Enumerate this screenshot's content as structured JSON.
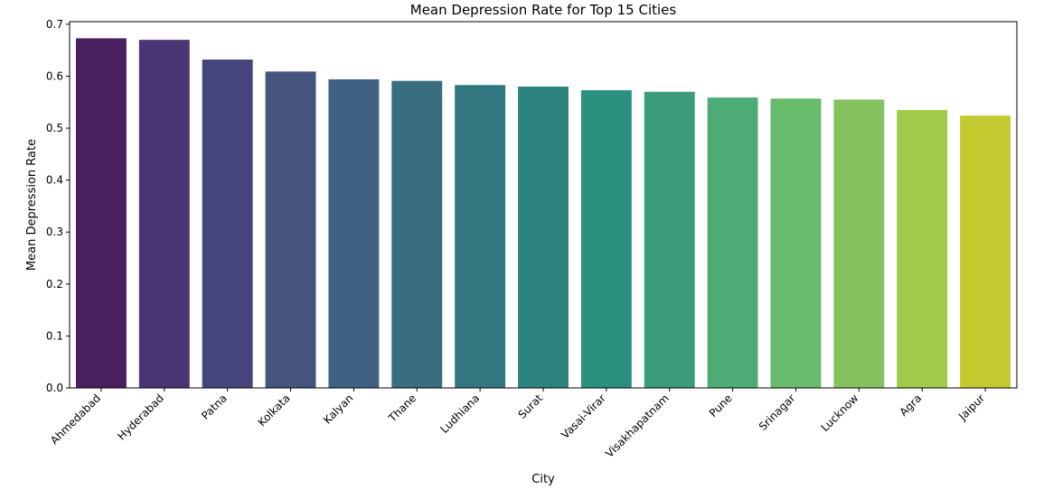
{
  "chart_data": {
    "type": "bar",
    "title": "Mean Depression Rate for Top 15 Cities",
    "xlabel": "City",
    "ylabel": "Mean Depression Rate",
    "ylim": [
      0,
      0.705
    ],
    "yticks": [
      "0.0",
      "0.1",
      "0.2",
      "0.3",
      "0.4",
      "0.5",
      "0.6",
      "0.7"
    ],
    "grid": false,
    "categories": [
      "Ahmedabad",
      "Hyderabad",
      "Patna",
      "Kolkata",
      "Kalyan",
      "Thane",
      "Ludhiana",
      "Surat",
      "Vasai-Virar",
      "Visakhapatnam",
      "Pune",
      "Srinagar",
      "Lucknow",
      "Agra",
      "Jaipur"
    ],
    "values": [
      0.673,
      0.67,
      0.632,
      0.609,
      0.594,
      0.591,
      0.583,
      0.58,
      0.573,
      0.57,
      0.559,
      0.557,
      0.555,
      0.535,
      0.524
    ],
    "colors": [
      "#4a1f5f",
      "#4b3575",
      "#45457c",
      "#46557e",
      "#3f6282",
      "#386e80",
      "#327780",
      "#2d847f",
      "#2a917e",
      "#3a9c78",
      "#4dac75",
      "#67bb6a",
      "#84c25f",
      "#a1c94a",
      "#c2ca2f"
    ]
  }
}
